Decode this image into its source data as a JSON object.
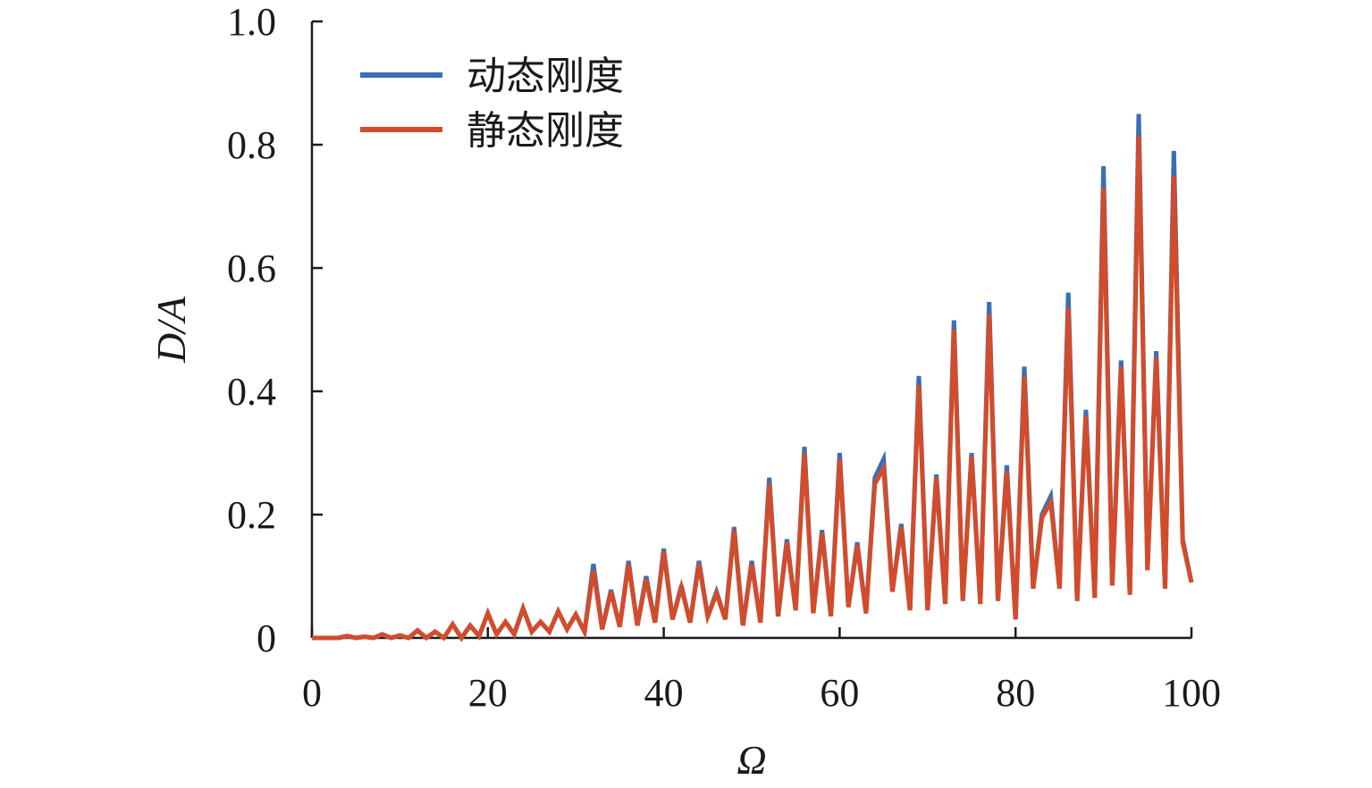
{
  "chart_data": {
    "type": "line",
    "title": "",
    "xlabel": "Ω",
    "ylabel": "D/A",
    "xlim": [
      0,
      100
    ],
    "ylim": [
      0,
      1.0
    ],
    "x_ticks": [
      0,
      20,
      40,
      60,
      80,
      100
    ],
    "x_tick_labels": [
      "0",
      "20",
      "40",
      "60",
      "80",
      "100"
    ],
    "y_ticks": [
      0,
      0.2,
      0.4,
      0.6,
      0.8,
      1.0
    ],
    "y_tick_labels": [
      "0",
      "0.2",
      "0.4",
      "0.6",
      "0.8",
      "1.0"
    ],
    "grid": false,
    "legend_position": "top-left",
    "x": [
      0,
      1,
      2,
      3,
      4,
      5,
      6,
      7,
      8,
      9,
      10,
      11,
      12,
      13,
      14,
      15,
      16,
      17,
      18,
      19,
      20,
      21,
      22,
      23,
      24,
      25,
      26,
      27,
      28,
      29,
      30,
      31,
      32,
      33,
      34,
      35,
      36,
      37,
      38,
      39,
      40,
      41,
      42,
      43,
      44,
      45,
      46,
      47,
      48,
      49,
      50,
      51,
      52,
      53,
      54,
      55,
      56,
      57,
      58,
      59,
      60,
      61,
      62,
      63,
      64,
      65,
      66,
      67,
      68,
      69,
      70,
      71,
      72,
      73,
      74,
      75,
      76,
      77,
      78,
      79,
      80,
      81,
      82,
      83,
      84,
      85,
      86,
      87,
      88,
      89,
      90,
      91,
      92,
      93,
      94,
      95,
      96,
      97,
      98,
      99,
      100
    ],
    "series": [
      {
        "name": "动态刚度",
        "color": "#3a6fb5",
        "values": [
          0.0,
          0.0,
          0.0,
          0.0,
          0.003,
          0.0,
          0.002,
          0.0,
          0.006,
          0.0,
          0.004,
          0.0,
          0.012,
          0.0,
          0.01,
          0.0,
          0.022,
          0.0,
          0.02,
          0.003,
          0.04,
          0.006,
          0.026,
          0.006,
          0.048,
          0.01,
          0.026,
          0.01,
          0.043,
          0.014,
          0.038,
          0.01,
          0.12,
          0.014,
          0.078,
          0.018,
          0.125,
          0.02,
          0.1,
          0.025,
          0.145,
          0.03,
          0.085,
          0.025,
          0.125,
          0.035,
          0.075,
          0.03,
          0.18,
          0.02,
          0.125,
          0.025,
          0.26,
          0.035,
          0.16,
          0.045,
          0.31,
          0.04,
          0.175,
          0.035,
          0.3,
          0.05,
          0.155,
          0.04,
          0.26,
          0.29,
          0.075,
          0.185,
          0.045,
          0.425,
          0.045,
          0.265,
          0.055,
          0.515,
          0.06,
          0.3,
          0.055,
          0.545,
          0.06,
          0.28,
          0.03,
          0.44,
          0.08,
          0.2,
          0.23,
          0.08,
          0.56,
          0.06,
          0.37,
          0.065,
          0.765,
          0.085,
          0.45,
          0.07,
          0.85,
          0.11,
          0.465,
          0.08,
          0.79,
          0.16,
          0.09
        ]
      },
      {
        "name": "静态刚度",
        "color": "#d24c2c",
        "values": [
          0.0,
          0.0,
          0.0,
          0.0,
          0.003,
          0.0,
          0.002,
          0.0,
          0.006,
          0.0,
          0.004,
          0.0,
          0.012,
          0.0,
          0.01,
          0.0,
          0.022,
          0.0,
          0.02,
          0.003,
          0.04,
          0.006,
          0.026,
          0.006,
          0.048,
          0.01,
          0.026,
          0.01,
          0.043,
          0.014,
          0.038,
          0.01,
          0.11,
          0.014,
          0.075,
          0.018,
          0.12,
          0.02,
          0.095,
          0.025,
          0.14,
          0.03,
          0.082,
          0.025,
          0.12,
          0.035,
          0.072,
          0.03,
          0.175,
          0.02,
          0.12,
          0.025,
          0.25,
          0.035,
          0.155,
          0.045,
          0.3,
          0.04,
          0.17,
          0.035,
          0.29,
          0.05,
          0.15,
          0.04,
          0.25,
          0.275,
          0.075,
          0.18,
          0.045,
          0.41,
          0.045,
          0.26,
          0.055,
          0.5,
          0.06,
          0.295,
          0.055,
          0.525,
          0.06,
          0.27,
          0.03,
          0.425,
          0.08,
          0.195,
          0.22,
          0.08,
          0.535,
          0.06,
          0.36,
          0.065,
          0.73,
          0.085,
          0.44,
          0.07,
          0.815,
          0.11,
          0.455,
          0.08,
          0.75,
          0.155,
          0.09
        ]
      }
    ]
  }
}
